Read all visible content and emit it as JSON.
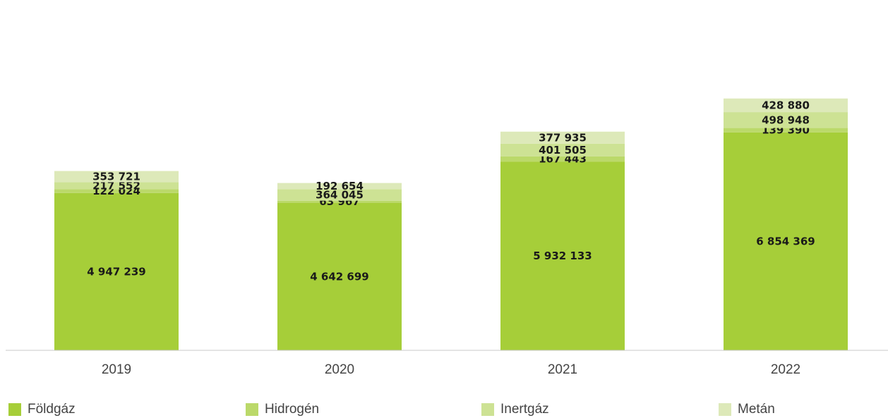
{
  "chart_data": {
    "type": "bar",
    "stacked": true,
    "categories": [
      "2019",
      "2020",
      "2021",
      "2022"
    ],
    "series": [
      {
        "name": "Földgáz",
        "values": [
          4947239,
          4642699,
          5932133,
          6854369
        ],
        "color": "#a6ce39"
      },
      {
        "name": "Hidrogén",
        "values": [
          122024,
          63967,
          167443,
          139390
        ],
        "color": "#bbd96a"
      },
      {
        "name": "Inertgáz",
        "values": [
          217552,
          364045,
          401505,
          498948
        ],
        "color": "#cde294"
      },
      {
        "name": "Metán",
        "values": [
          353721,
          192654,
          377935,
          428880
        ],
        "color": "#dde9b9"
      }
    ],
    "value_labels": [
      [
        "4 947 239",
        "4 642 699",
        "5 932 133",
        "6 854 369"
      ],
      [
        "122 024",
        "63 967",
        "167 443",
        "139 390"
      ],
      [
        "217 552",
        "364 045",
        "401 505",
        "498 948"
      ],
      [
        "353 721",
        "192 654",
        "377 935",
        "428 880"
      ]
    ],
    "legend_position": "bottom",
    "grid": false
  }
}
